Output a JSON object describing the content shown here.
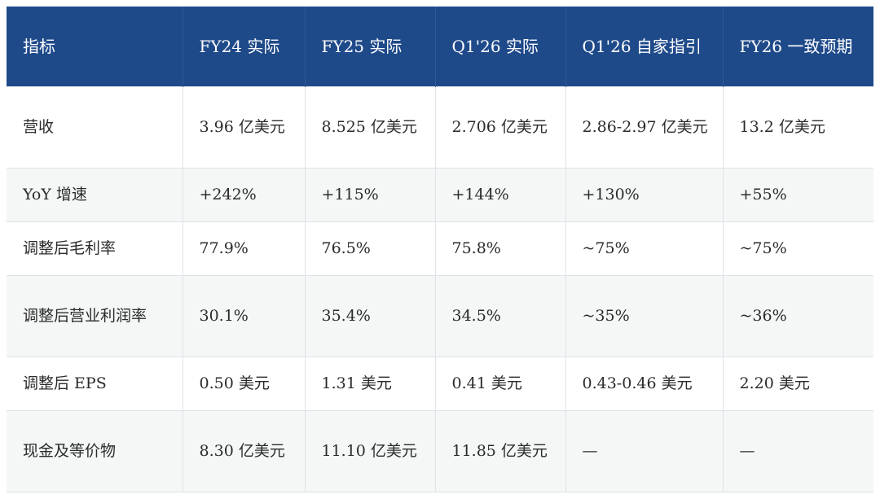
{
  "table": {
    "headers": [
      "指标",
      "FY24 实际",
      "FY25 实际",
      "Q1'26 实际",
      "Q1'26 自家指引",
      "FY26 一致预期"
    ],
    "rows": [
      [
        "营收",
        "3.96 亿美元",
        "8.525 亿美元",
        "2.706 亿美元",
        "2.86-2.97 亿美元",
        "13.2 亿美元"
      ],
      [
        "YoY 增速",
        "+242%",
        "+115%",
        "+144%",
        "+130%",
        "+55%"
      ],
      [
        "调整后毛利率",
        "77.9%",
        "76.5%",
        "75.8%",
        "~75%",
        "~75%"
      ],
      [
        "调整后营业利润率",
        "30.1%",
        "35.4%",
        "34.5%",
        "~35%",
        "~36%"
      ],
      [
        "调整后 EPS",
        "0.50 美元",
        "1.31 美元",
        "0.41 美元",
        "0.43-0.46 美元",
        "2.20 美元"
      ],
      [
        "现金及等价物",
        "8.30 亿美元",
        "11.10 亿美元",
        "11.85 亿美元",
        "—",
        "—"
      ]
    ]
  },
  "colors": {
    "header_bg": "#1f4a8a",
    "header_text": "#ffffff",
    "row_alt_bg": "#f4f7f6",
    "border": "#dde3e8"
  }
}
